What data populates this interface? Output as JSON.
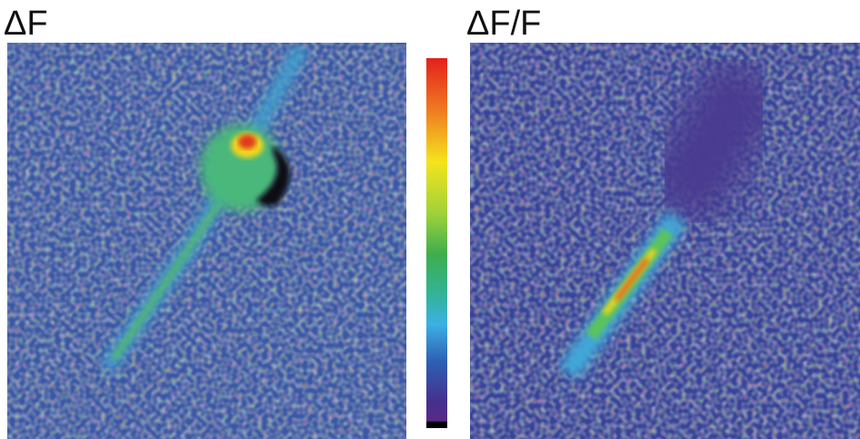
{
  "panels": [
    {
      "title": "ΔF"
    },
    {
      "title": "ΔF/F"
    }
  ]
}
